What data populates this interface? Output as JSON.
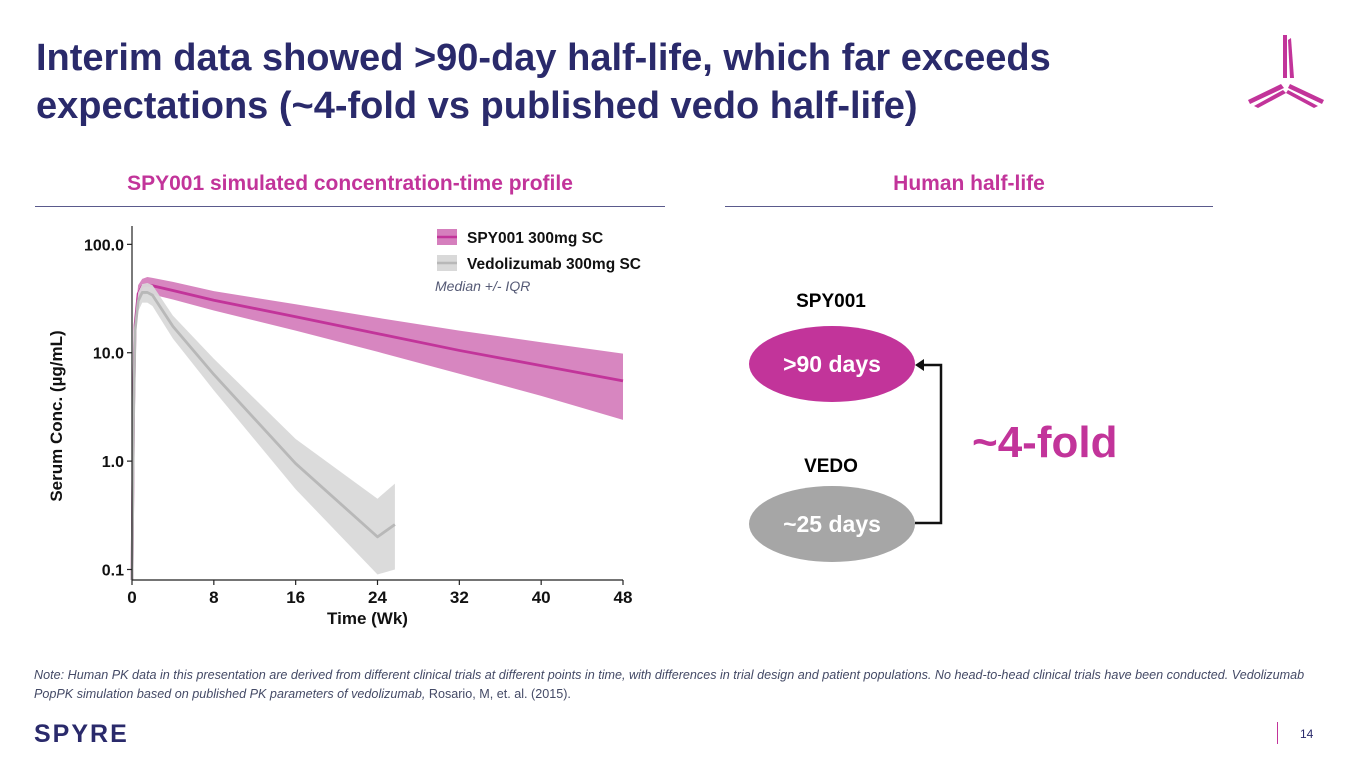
{
  "title": "Interim data showed >90-day half-life, which far exceeds expectations (~4-fold vs published vedo half-life)",
  "left_section": {
    "heading": "SPY001 simulated concentration-time profile"
  },
  "right_section": {
    "heading": "Human half-life"
  },
  "chart_data": {
    "type": "line",
    "title": "SPY001 simulated concentration-time profile",
    "xlabel": "Time (Wk)",
    "ylabel": "Serum Conc. (µg/mL)",
    "yscale": "log",
    "xlim": [
      0,
      48
    ],
    "ylim": [
      0.08,
      130
    ],
    "xticks": [
      0,
      8,
      16,
      24,
      32,
      40,
      48
    ],
    "xtick_labels": [
      "0",
      "8",
      "16",
      "24",
      "32",
      "40",
      "48"
    ],
    "yticks": [
      0.1,
      1,
      10,
      100
    ],
    "ytick_labels": [
      "0.1",
      "1.0",
      "10.0",
      "100.0"
    ],
    "legend_position": "top-right",
    "annotation": "Median +/- IQR",
    "series": [
      {
        "name": "SPY001 300mg SC",
        "color": "#c2349a",
        "band_color": "#d57fbd",
        "x": [
          0,
          0.15,
          0.3,
          0.6,
          1,
          1.5,
          2,
          4,
          8,
          16,
          24,
          32,
          40,
          48
        ],
        "y": [
          0.08,
          3,
          18,
          35,
          41,
          42,
          41.5,
          37.5,
          30.5,
          21.5,
          15,
          10.5,
          7.6,
          5.5
        ],
        "lower": [
          0.08,
          2.5,
          14,
          29,
          34,
          35,
          34.5,
          31,
          24.5,
          16,
          10.2,
          6.4,
          4,
          2.4
        ],
        "upper": [
          0.08,
          3.5,
          22,
          42,
          48,
          50,
          49,
          45,
          37,
          28,
          21,
          16,
          12.5,
          9.8
        ]
      },
      {
        "name": "Vedolizumab 300mg SC",
        "color": "#b8b8b8",
        "band_color": "#d9d9d9",
        "x": [
          0,
          0.15,
          0.3,
          0.6,
          1,
          1.5,
          2,
          4,
          8,
          16,
          24,
          25.7
        ],
        "y": [
          0.08,
          2.5,
          16,
          30,
          36,
          36,
          34,
          17.5,
          6.3,
          0.95,
          0.2,
          0.26
        ],
        "lower": [
          0.08,
          2,
          13,
          24,
          29,
          29,
          27,
          13.5,
          4.5,
          0.55,
          0.09,
          0.1
        ],
        "upper": [
          0.08,
          3,
          19,
          36,
          43,
          44,
          42,
          22,
          8.8,
          1.6,
          0.45,
          0.62
        ]
      }
    ]
  },
  "half_life": {
    "spy001": {
      "label": "SPY001",
      "value": ">90 days",
      "color": "#c2349a"
    },
    "vedo": {
      "label": "VEDO",
      "value": "~25 days",
      "color": "#a6a6a6"
    },
    "fold": "~4-fold"
  },
  "footnote": {
    "italic_text": "Note: Human PK data in this presentation are derived from different clinical trials at different points in time, with differences in trial design and patient populations. No head-to-head clinical trials have been conducted. Vedolizumab PopPK simulation based on published PK parameters of vedolizumab,",
    "citation": " Rosario, M, et. al. (2015)."
  },
  "footer": {
    "brand": "SPYRE",
    "page_number": "14"
  },
  "colors": {
    "title": "#2a2a6b",
    "accent": "#c2349a"
  }
}
